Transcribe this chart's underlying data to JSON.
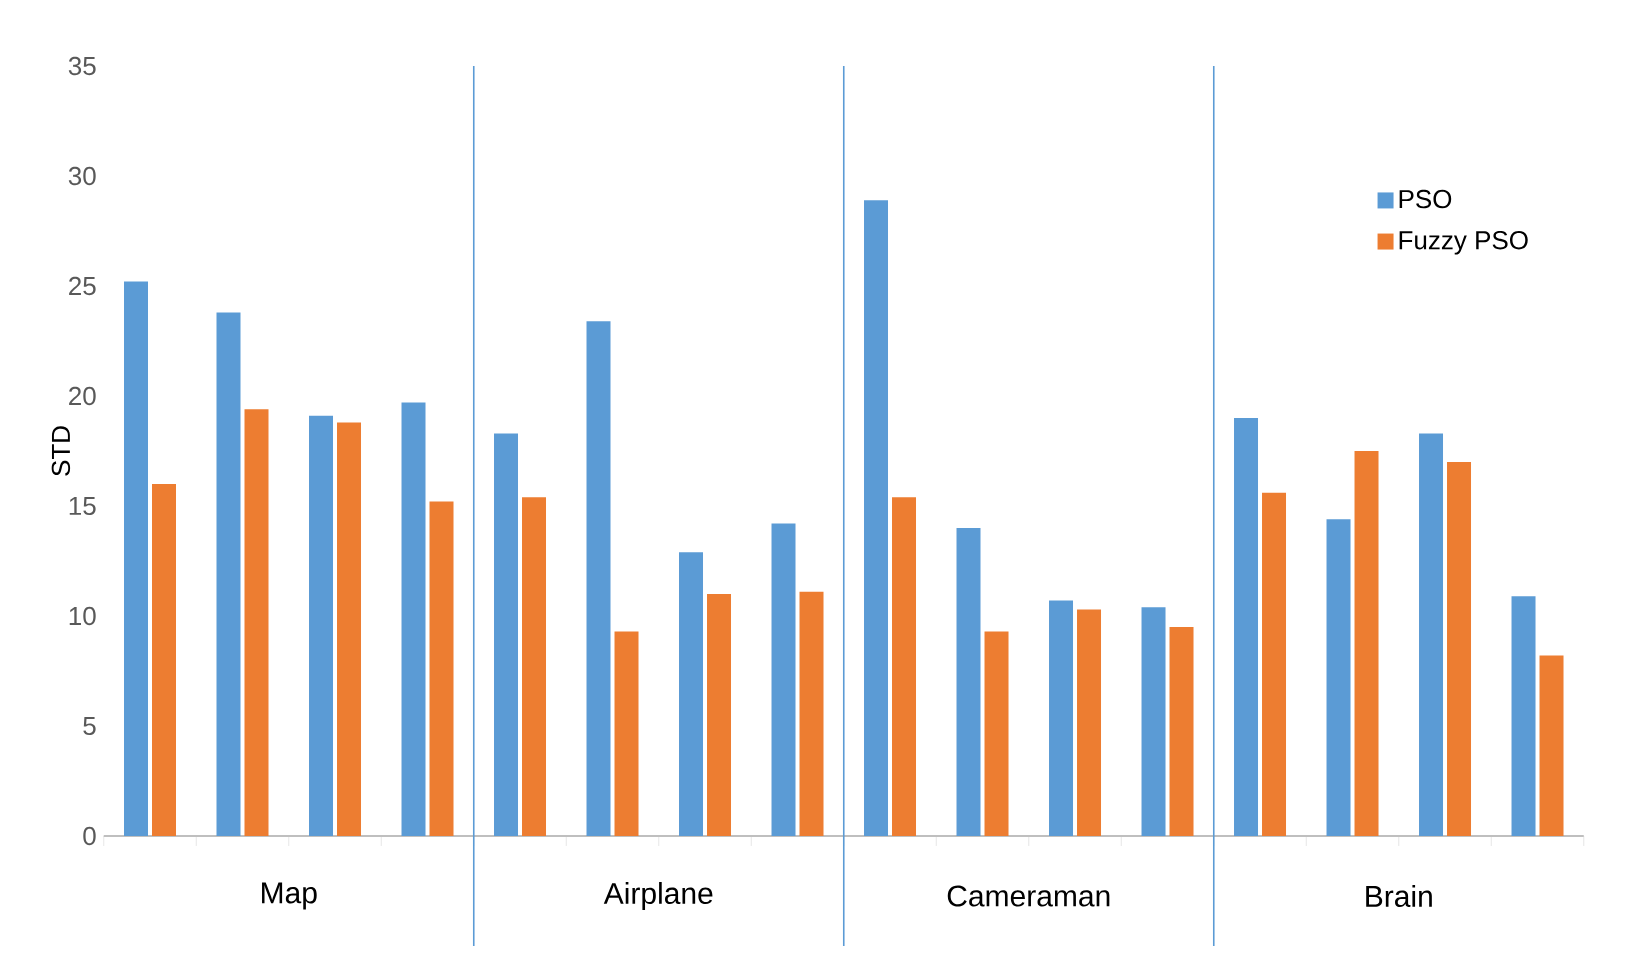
{
  "chart_data": {
    "type": "bar",
    "ylabel": "STD",
    "categories": [
      null,
      null,
      null,
      null,
      null,
      null,
      null,
      null,
      null,
      null,
      null,
      null,
      null,
      null,
      null,
      null
    ],
    "series": [
      {
        "name": "PSO",
        "color": "#5b9bd5",
        "values": [
          25.2,
          23.8,
          19.1,
          19.7,
          18.3,
          23.4,
          12.9,
          14.2,
          28.9,
          14.0,
          10.7,
          10.4,
          19.0,
          14.4,
          18.3,
          10.9
        ]
      },
      {
        "name": "Fuzzy PSO",
        "color": "#ed7d31",
        "values": [
          16.0,
          19.4,
          18.8,
          15.2,
          15.4,
          9.3,
          11.0,
          11.1,
          15.4,
          9.3,
          10.3,
          9.5,
          15.6,
          17.5,
          17.0,
          8.2
        ]
      }
    ],
    "annotations": [
      "Map",
      "Airplane",
      "Cameraman",
      "Brain"
    ],
    "ylim": [
      0,
      35
    ],
    "yticks": [
      0,
      5,
      10,
      15,
      20,
      25,
      30,
      35
    ],
    "grid": false,
    "legend": "top right"
  }
}
